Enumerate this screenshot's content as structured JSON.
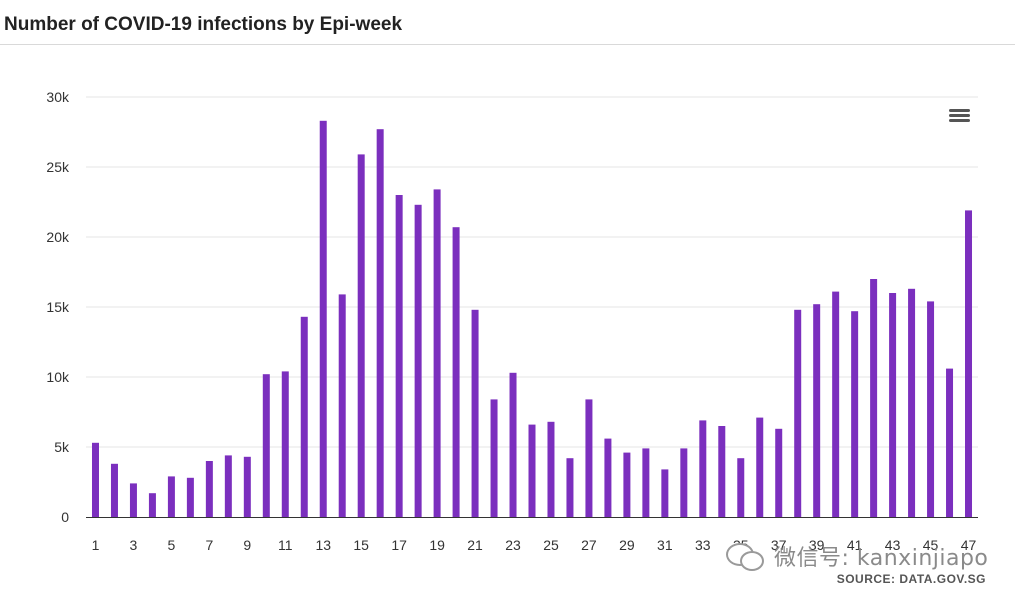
{
  "chart_title": "Number of COVID-19 infections by Epi-week",
  "menu": {
    "icon": "hamburger-menu-icon"
  },
  "watermark": {
    "icon": "wechat-icon",
    "text": "微信号: kanxinjiapo"
  },
  "source": "SOURCE: DATA.GOV.SG",
  "colors": {
    "bar": "#7b2fbe",
    "grid": "#e6e6e6",
    "axis": "#333333",
    "tick_text": "#333333"
  },
  "chart_data": {
    "type": "bar",
    "title": "Number of COVID-19 infections by Epi-week",
    "xlabel": "",
    "ylabel": "",
    "x_tick_labels": [
      "1",
      "3",
      "5",
      "7",
      "9",
      "11",
      "13",
      "15",
      "17",
      "19",
      "21",
      "23",
      "25",
      "27",
      "29",
      "31",
      "33",
      "35",
      "37",
      "39",
      "41",
      "43",
      "45",
      "47"
    ],
    "y_ticks": [
      0,
      5000,
      10000,
      15000,
      20000,
      25000,
      30000
    ],
    "y_tick_labels": [
      "0",
      "5k",
      "10k",
      "15k",
      "20k",
      "25k",
      "30k"
    ],
    "ylim": [
      0,
      30000
    ],
    "grid": true,
    "legend": "none",
    "categories": [
      "1",
      "2",
      "3",
      "4",
      "5",
      "6",
      "7",
      "8",
      "9",
      "10",
      "11",
      "12",
      "13",
      "14",
      "15",
      "16",
      "17",
      "18",
      "19",
      "20",
      "21",
      "22",
      "23",
      "24",
      "25",
      "26",
      "27",
      "28",
      "29",
      "30",
      "31",
      "32",
      "33",
      "34",
      "35",
      "36",
      "37",
      "38",
      "39",
      "40",
      "41",
      "42",
      "43",
      "44",
      "45",
      "46",
      "47"
    ],
    "values": [
      5300,
      3800,
      2400,
      1700,
      2900,
      2800,
      4000,
      4400,
      4300,
      10200,
      10400,
      14300,
      28300,
      15900,
      25900,
      27700,
      23000,
      22300,
      23400,
      20700,
      14800,
      8400,
      10300,
      6600,
      6800,
      4200,
      8400,
      5600,
      4600,
      4900,
      3400,
      4900,
      6900,
      6500,
      4200,
      7100,
      6300,
      14800,
      15200,
      16100,
      14700,
      17000,
      16000,
      16300,
      15400,
      10600,
      21900
    ]
  }
}
